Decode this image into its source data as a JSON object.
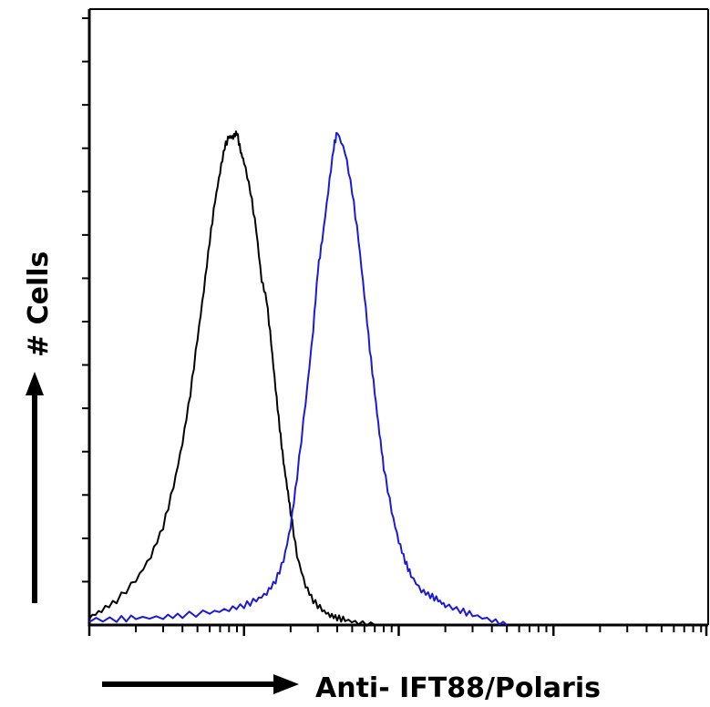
{
  "chart_data": {
    "type": "line",
    "title": "",
    "xlabel": "Anti- IFT88/Polaris",
    "ylabel": "# Cells",
    "x_scale": "log",
    "x_decades": [
      1,
      10,
      100,
      1000,
      10000
    ],
    "xlim": [
      1,
      10000
    ],
    "ylim": [
      0,
      100
    ],
    "y_major_ticks": 14,
    "grid": false,
    "legend": "none",
    "series": [
      {
        "color": "#000000",
        "x": [
          1,
          1.2,
          1.5,
          2,
          2.5,
          3,
          3.5,
          4,
          4.5,
          5,
          5.5,
          6,
          6.5,
          7,
          7.5,
          8,
          8.5,
          9,
          9.5,
          10,
          11,
          12,
          13,
          14,
          15,
          16,
          17,
          18,
          19,
          20,
          22,
          25,
          28,
          32,
          36,
          40,
          45,
          55,
          70
        ],
        "y": [
          1.5,
          3,
          5,
          9,
          14,
          20,
          28,
          37,
          47,
          58,
          68,
          78,
          86,
          92,
          97,
          99,
          99,
          100,
          96,
          94,
          88,
          80,
          70,
          66,
          57,
          48,
          40,
          33,
          28,
          23,
          14,
          8,
          5,
          3,
          2,
          1.5,
          1,
          0.5,
          0
        ]
      },
      {
        "color": "#1a1ad6",
        "x": [
          1,
          1.5,
          2,
          3,
          4,
          6,
          8,
          10,
          12,
          14,
          16,
          18,
          20,
          22,
          25,
          28,
          30,
          32,
          35,
          38,
          40,
          45,
          50,
          55,
          60,
          65,
          70,
          75,
          80,
          90,
          100,
          110,
          120,
          140,
          160,
          180,
          200,
          250,
          300,
          400,
          500
        ],
        "y": [
          1,
          1.2,
          1.4,
          1.6,
          2,
          2.5,
          3.2,
          4,
          5,
          6.5,
          9,
          13,
          20,
          30,
          45,
          60,
          72,
          78,
          88,
          97,
          100,
          96,
          88,
          78,
          67,
          56,
          47,
          39,
          32,
          23,
          17,
          13,
          10,
          7,
          6,
          5,
          4,
          3,
          2,
          1,
          0
        ]
      }
    ]
  }
}
